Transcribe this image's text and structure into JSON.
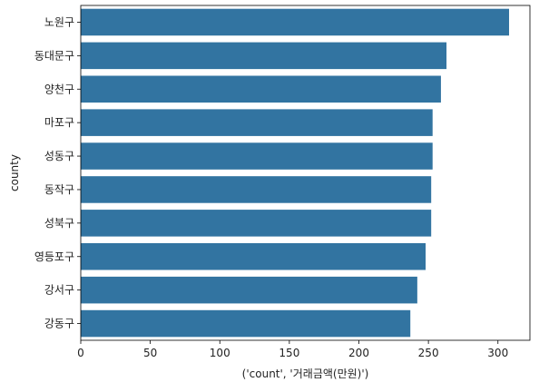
{
  "chart_data": {
    "type": "bar",
    "orientation": "horizontal",
    "title": "",
    "xlabel": "('count', '거래금액(만원)')",
    "ylabel": "county",
    "xlim": [
      0,
      323
    ],
    "xticks": [
      "0",
      "50",
      "100",
      "150",
      "200",
      "250",
      "300"
    ],
    "categories": [
      "노원구",
      "동대문구",
      "양천구",
      "마포구",
      "성동구",
      "동작구",
      "성북구",
      "영등포구",
      "강서구",
      "강동구"
    ],
    "values": [
      308,
      263,
      259,
      253,
      253,
      252,
      252,
      248,
      242,
      237
    ],
    "bar_color": "#3274a1",
    "grid": false,
    "legend": "none"
  }
}
